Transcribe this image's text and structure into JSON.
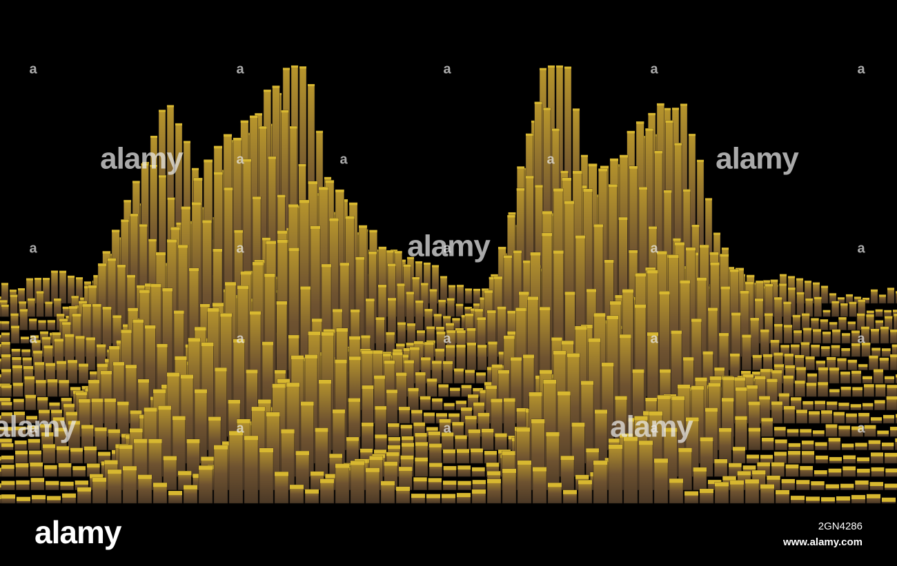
{
  "watermark": "alamy",
  "watermark_mark": "a",
  "footer": {
    "logo": "alamy",
    "image_id": "2GN4286",
    "url": "www.alamy.com"
  }
}
